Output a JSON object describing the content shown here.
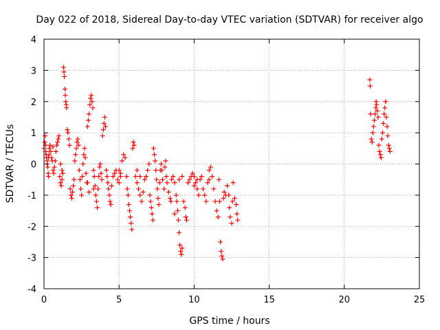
{
  "chart_data": {
    "type": "scatter",
    "title": "Day 022 of 2018, Sidereal Day-to-day VTEC variation (SDTVAR) for receiver algo",
    "xlabel": "GPS time / hours",
    "ylabel": "SDTVAR / TECUs",
    "xlim": [
      0,
      25
    ],
    "ylim": [
      -4,
      4
    ],
    "xticks": [
      0,
      5,
      10,
      15,
      20,
      25
    ],
    "yticks": [
      -4,
      -3,
      -2,
      -1,
      0,
      1,
      2,
      3,
      4
    ],
    "xtick_labels": [
      "0",
      "5",
      "10",
      "15",
      "20",
      "25"
    ],
    "ytick_labels": [
      "-4",
      "-3",
      "-2",
      "-1",
      "0",
      "1",
      "2",
      "3",
      "4"
    ],
    "grid": true,
    "marker": "+",
    "marker_color": "#ff0000",
    "series": [
      {
        "name": "SDTVAR",
        "points": [
          [
            0.0,
            0.5
          ],
          [
            0.05,
            0.7
          ],
          [
            0.08,
            0.9
          ],
          [
            0.1,
            0.6
          ],
          [
            0.12,
            0.4
          ],
          [
            0.15,
            0.3
          ],
          [
            0.18,
            0.2
          ],
          [
            0.2,
            0.1
          ],
          [
            0.22,
            0.0
          ],
          [
            0.25,
            -0.1
          ],
          [
            0.28,
            -0.3
          ],
          [
            0.3,
            -0.4
          ],
          [
            0.33,
            0.3
          ],
          [
            0.36,
            0.5
          ],
          [
            0.4,
            0.6
          ],
          [
            0.45,
            0.4
          ],
          [
            0.5,
            0.2
          ],
          [
            0.55,
            0.1
          ],
          [
            0.6,
            -0.2
          ],
          [
            0.65,
            -0.3
          ],
          [
            0.7,
            -0.1
          ],
          [
            0.75,
            0.1
          ],
          [
            0.8,
            0.4
          ],
          [
            0.85,
            0.6
          ],
          [
            0.9,
            0.7
          ],
          [
            0.95,
            0.8
          ],
          [
            1.0,
            0.9
          ],
          [
            1.05,
            -0.4
          ],
          [
            1.1,
            -0.6
          ],
          [
            1.15,
            -0.7
          ],
          [
            1.2,
            -0.5
          ],
          [
            1.25,
            -0.3
          ],
          [
            1.3,
            3.1
          ],
          [
            1.33,
            2.95
          ],
          [
            1.36,
            2.8
          ],
          [
            1.4,
            2.4
          ],
          [
            1.42,
            2.2
          ],
          [
            1.45,
            2.0
          ],
          [
            1.48,
            1.9
          ],
          [
            1.5,
            1.8
          ],
          [
            1.55,
            1.1
          ],
          [
            1.6,
            1.0
          ],
          [
            1.65,
            0.8
          ],
          [
            1.7,
            0.6
          ],
          [
            1.75,
            -0.8
          ],
          [
            1.8,
            -1.0
          ],
          [
            1.85,
            -1.1
          ],
          [
            1.9,
            -0.9
          ],
          [
            1.95,
            -0.7
          ],
          [
            2.0,
            -0.5
          ],
          [
            2.05,
            0.1
          ],
          [
            2.1,
            0.3
          ],
          [
            2.15,
            0.5
          ],
          [
            2.2,
            0.7
          ],
          [
            2.25,
            0.8
          ],
          [
            2.3,
            0.6
          ],
          [
            2.35,
            -0.2
          ],
          [
            2.4,
            -0.5
          ],
          [
            2.45,
            -0.8
          ],
          [
            2.5,
            -1.0
          ],
          [
            2.55,
            -0.4
          ],
          [
            2.6,
            0.0
          ],
          [
            2.65,
            0.3
          ],
          [
            2.7,
            0.5
          ],
          [
            2.75,
            0.2
          ],
          [
            2.8,
            -0.3
          ],
          [
            2.85,
            -0.6
          ],
          [
            2.9,
            1.2
          ],
          [
            2.95,
            1.4
          ],
          [
            3.0,
            1.6
          ],
          [
            3.05,
            1.9
          ],
          [
            3.1,
            2.1
          ],
          [
            3.15,
            2.2
          ],
          [
            3.2,
            2.0
          ],
          [
            3.25,
            1.8
          ],
          [
            3.3,
            -0.2
          ],
          [
            3.35,
            -0.4
          ],
          [
            3.4,
            -0.7
          ],
          [
            3.45,
            -1.0
          ],
          [
            3.5,
            -1.2
          ],
          [
            3.55,
            -1.4
          ],
          [
            3.6,
            -0.8
          ],
          [
            3.65,
            -0.4
          ],
          [
            3.7,
            -0.1
          ],
          [
            3.75,
            0.0
          ],
          [
            3.8,
            -0.3
          ],
          [
            3.85,
            -0.5
          ],
          [
            3.9,
            0.9
          ],
          [
            3.95,
            1.1
          ],
          [
            4.0,
            1.3
          ],
          [
            4.05,
            1.5
          ],
          [
            4.1,
            1.2
          ],
          [
            4.15,
            -0.2
          ],
          [
            4.2,
            -0.4
          ],
          [
            4.25,
            -0.6
          ],
          [
            4.3,
            -0.8
          ],
          [
            4.35,
            -1.0
          ],
          [
            4.4,
            -1.2
          ],
          [
            4.45,
            -1.3
          ],
          [
            4.5,
            -0.7
          ],
          [
            4.6,
            -0.4
          ],
          [
            4.7,
            -0.3
          ],
          [
            4.8,
            -0.2
          ],
          [
            4.9,
            -0.5
          ],
          [
            5.0,
            -0.6
          ],
          [
            5.1,
            -0.3
          ],
          [
            5.2,
            0.1
          ],
          [
            5.3,
            0.3
          ],
          [
            5.4,
            0.2
          ],
          [
            5.5,
            -0.4
          ],
          [
            5.55,
            -0.8
          ],
          [
            5.6,
            -1.0
          ],
          [
            5.65,
            -1.3
          ],
          [
            5.7,
            -1.5
          ],
          [
            5.75,
            -1.7
          ],
          [
            5.8,
            -1.9
          ],
          [
            5.85,
            -2.1
          ],
          [
            5.9,
            0.5
          ],
          [
            5.95,
            0.7
          ],
          [
            6.0,
            0.6
          ],
          [
            6.1,
            -0.4
          ],
          [
            6.2,
            -0.6
          ],
          [
            6.3,
            -0.8
          ],
          [
            6.4,
            -1.0
          ],
          [
            6.5,
            -1.2
          ],
          [
            6.6,
            -0.9
          ],
          [
            6.7,
            -0.5
          ],
          [
            6.8,
            -0.4
          ],
          [
            6.9,
            -0.2
          ],
          [
            7.0,
            0.0
          ],
          [
            7.05,
            -1.0
          ],
          [
            7.1,
            -1.2
          ],
          [
            7.15,
            -1.4
          ],
          [
            7.2,
            -1.6
          ],
          [
            7.25,
            -1.8
          ],
          [
            7.3,
            0.5
          ],
          [
            7.35,
            0.3
          ],
          [
            7.4,
            0.1
          ],
          [
            7.45,
            -0.2
          ],
          [
            7.5,
            -0.5
          ],
          [
            7.55,
            -0.8
          ],
          [
            7.6,
            -1.1
          ],
          [
            7.65,
            -1.3
          ],
          [
            7.7,
            -0.6
          ],
          [
            7.75,
            -0.2
          ],
          [
            7.8,
            0.0
          ],
          [
            7.85,
            -0.2
          ],
          [
            7.9,
            -0.5
          ],
          [
            8.0,
            -0.8
          ],
          [
            8.05,
            -0.1
          ],
          [
            8.1,
            0.1
          ],
          [
            8.15,
            -0.4
          ],
          [
            8.2,
            -0.6
          ],
          [
            8.3,
            -0.9
          ],
          [
            8.4,
            -1.1
          ],
          [
            8.45,
            -1.2
          ],
          [
            8.5,
            -0.5
          ],
          [
            8.6,
            -0.4
          ],
          [
            8.7,
            -0.6
          ],
          [
            8.8,
            -1.0
          ],
          [
            8.85,
            -1.2
          ],
          [
            8.9,
            -1.5
          ],
          [
            8.95,
            -1.8
          ],
          [
            9.0,
            -2.2
          ],
          [
            9.05,
            -2.6
          ],
          [
            9.1,
            -2.8
          ],
          [
            9.15,
            -2.9
          ],
          [
            9.2,
            -2.7
          ],
          [
            9.3,
            -1.2
          ],
          [
            9.4,
            -1.4
          ],
          [
            9.45,
            -1.7
          ],
          [
            9.5,
            -1.8
          ],
          [
            9.6,
            -0.6
          ],
          [
            9.7,
            -0.5
          ],
          [
            9.8,
            -0.4
          ],
          [
            9.9,
            -0.3
          ],
          [
            10.0,
            -0.4
          ],
          [
            10.1,
            -0.6
          ],
          [
            10.2,
            -0.8
          ],
          [
            10.3,
            -1.0
          ],
          [
            10.4,
            -0.5
          ],
          [
            10.5,
            -0.4
          ],
          [
            10.6,
            -0.8
          ],
          [
            10.7,
            -1.0
          ],
          [
            10.8,
            -1.2
          ],
          [
            10.9,
            -0.6
          ],
          [
            11.0,
            -0.2
          ],
          [
            11.1,
            -0.1
          ],
          [
            11.2,
            -0.4
          ],
          [
            11.3,
            -0.8
          ],
          [
            11.4,
            -1.2
          ],
          [
            11.5,
            -1.5
          ],
          [
            11.6,
            -1.7
          ],
          [
            11.65,
            -0.5
          ],
          [
            11.7,
            -1.2
          ],
          [
            11.75,
            -2.5
          ],
          [
            11.8,
            -2.8
          ],
          [
            11.85,
            -2.95
          ],
          [
            11.9,
            -3.05
          ],
          [
            11.95,
            -1.1
          ],
          [
            12.0,
            -0.9
          ],
          [
            12.1,
            -1.0
          ],
          [
            12.2,
            -0.7
          ],
          [
            12.3,
            -1.0
          ],
          [
            12.35,
            -1.4
          ],
          [
            12.4,
            -1.7
          ],
          [
            12.5,
            -1.9
          ],
          [
            12.55,
            -1.2
          ],
          [
            12.6,
            -0.6
          ],
          [
            12.7,
            -1.1
          ],
          [
            12.8,
            -1.3
          ],
          [
            12.85,
            -1.6
          ],
          [
            12.9,
            -1.8
          ],
          [
            0.3,
            0.2
          ],
          [
            0.6,
            0.55
          ],
          [
            1.1,
            0.0
          ],
          [
            1.2,
            -0.2
          ],
          [
            2.9,
            -0.6
          ],
          [
            3.0,
            -0.9
          ],
          [
            3.3,
            -0.8
          ],
          [
            5.0,
            -0.2
          ],
          [
            5.1,
            -0.4
          ],
          [
            6.2,
            -0.2
          ],
          [
            6.4,
            -0.4
          ],
          [
            8.7,
            -1.6
          ],
          [
            9.0,
            -0.5
          ],
          [
            9.2,
            -0.4
          ],
          [
            10.0,
            -0.7
          ],
          [
            10.2,
            -0.5
          ],
          [
            11.0,
            -0.5
          ],
          [
            21.7,
            2.7
          ],
          [
            21.72,
            2.5
          ],
          [
            21.75,
            1.6
          ],
          [
            21.8,
            0.8
          ],
          [
            21.85,
            0.7
          ],
          [
            21.9,
            1.0
          ],
          [
            21.95,
            1.2
          ],
          [
            22.0,
            1.4
          ],
          [
            22.05,
            1.6
          ],
          [
            22.1,
            1.8
          ],
          [
            22.12,
            2.0
          ],
          [
            22.15,
            1.9
          ],
          [
            22.2,
            1.7
          ],
          [
            22.25,
            1.5
          ],
          [
            22.3,
            0.6
          ],
          [
            22.35,
            0.4
          ],
          [
            22.4,
            0.3
          ],
          [
            22.45,
            0.2
          ],
          [
            22.5,
            0.8
          ],
          [
            22.55,
            1.0
          ],
          [
            22.6,
            1.3
          ],
          [
            22.65,
            1.6
          ],
          [
            22.7,
            1.8
          ],
          [
            22.75,
            2.0
          ],
          [
            22.8,
            1.5
          ],
          [
            22.85,
            1.2
          ],
          [
            22.9,
            0.9
          ],
          [
            22.95,
            0.6
          ],
          [
            23.0,
            0.5
          ],
          [
            23.05,
            0.4
          ]
        ]
      }
    ]
  }
}
